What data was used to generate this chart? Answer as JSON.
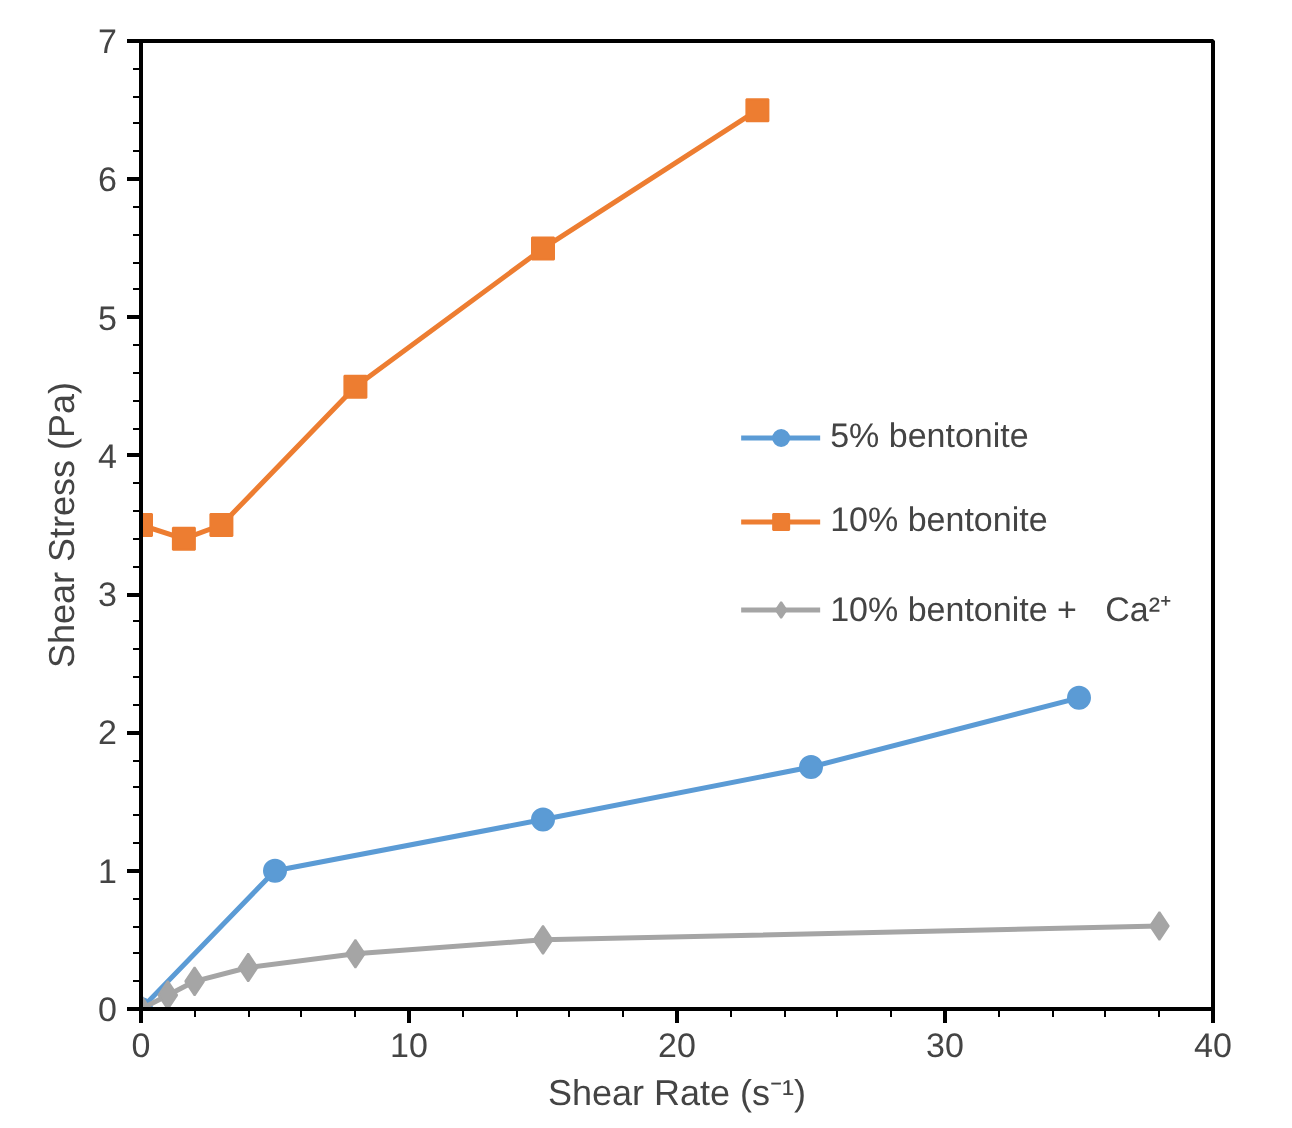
{
  "chart_data": {
    "type": "line",
    "xlabel": "Shear Rate (s⁻¹)",
    "ylabel": "Shear Stress (Pa)",
    "xlim": [
      0,
      40
    ],
    "xticks": [
      0,
      10,
      20,
      30,
      40
    ],
    "ylim": [
      0,
      7
    ],
    "yticks": [
      0,
      1,
      2,
      3,
      4,
      5,
      6,
      7
    ],
    "grid": false,
    "legend": "right",
    "line_style": "solid",
    "series": [
      {
        "name": "5% bentonite",
        "color": "#5b9bd5",
        "marker": "circle",
        "x": [
          0,
          5,
          15,
          25,
          35
        ],
        "values": [
          0,
          1.0,
          1.37,
          1.75,
          2.25
        ]
      },
      {
        "name": "10% bentonite",
        "color": "#ed7d31",
        "marker": "square",
        "x": [
          0,
          1.6,
          3,
          8,
          15,
          23
        ],
        "values": [
          3.5,
          3.4,
          3.5,
          4.5,
          5.5,
          6.5
        ]
      },
      {
        "name": "10% bentonite +   Ca²⁺",
        "color": "#a5a5a5",
        "marker": "diamond",
        "x": [
          0,
          1,
          2,
          4,
          8,
          15,
          38
        ],
        "values": [
          0,
          0.1,
          0.2,
          0.3,
          0.4,
          0.5,
          0.6
        ]
      }
    ]
  }
}
